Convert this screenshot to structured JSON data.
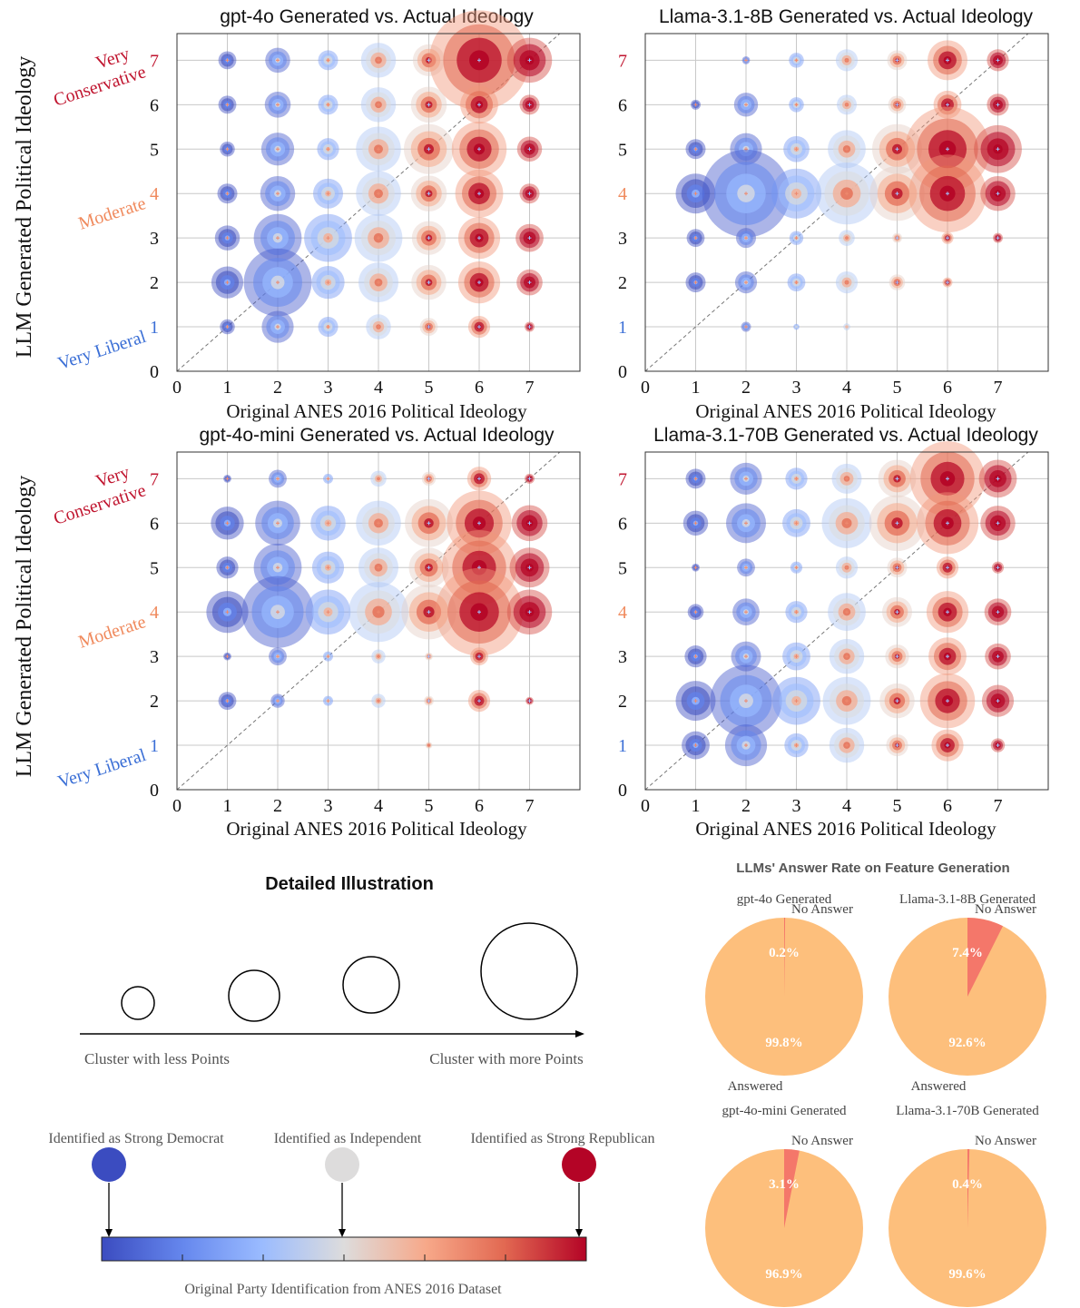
{
  "y_axis_label": "LLM Generated Political Ideology",
  "x_axis_label": "Original ANES 2016 Political Ideology",
  "anchor_labels": {
    "very_conservative_line1": "Very",
    "very_conservative_line2": "Conservative",
    "moderate": "Moderate",
    "very_liberal": "Very Liberal"
  },
  "colors": {
    "strong_democrat": "#3b4cc0",
    "independent": "#dddcdc",
    "strong_republican": "#b40426",
    "anchor_conservative": "#c0152f",
    "anchor_moderate": "#f08a5d",
    "anchor_liberal": "#3b6fd6",
    "pie_answered": "#fdbf7c",
    "pie_no_answer": "#f4776a"
  },
  "chart_data": [
    {
      "type": "scatter",
      "title": "gpt-4o Generated vs. Actual Ideology",
      "xlabel": "Original ANES 2016 Political Ideology",
      "ylabel": "LLM Generated Political Ideology",
      "xlim": [
        0,
        8
      ],
      "ylim": [
        0,
        7.6
      ],
      "xticks": [
        0,
        1,
        2,
        3,
        4,
        5,
        6,
        7
      ],
      "yticks": [
        0,
        1,
        2,
        3,
        4,
        5,
        6,
        7
      ],
      "grid": true,
      "diagonal": "dashed y = x",
      "bubbles": [
        {
          "x": 1,
          "y": 7,
          "size": 0.18
        },
        {
          "x": 2,
          "y": 7,
          "size": 0.25
        },
        {
          "x": 3,
          "y": 7,
          "size": 0.2
        },
        {
          "x": 4,
          "y": 7,
          "size": 0.35
        },
        {
          "x": 5,
          "y": 7,
          "size": 0.32
        },
        {
          "x": 6,
          "y": 7,
          "size": 1.0
        },
        {
          "x": 7,
          "y": 7,
          "size": 0.45
        },
        {
          "x": 1,
          "y": 6,
          "size": 0.18
        },
        {
          "x": 2,
          "y": 6,
          "size": 0.26
        },
        {
          "x": 3,
          "y": 6,
          "size": 0.2
        },
        {
          "x": 4,
          "y": 6,
          "size": 0.35
        },
        {
          "x": 5,
          "y": 6,
          "size": 0.36
        },
        {
          "x": 6,
          "y": 6,
          "size": 0.38
        },
        {
          "x": 7,
          "y": 6,
          "size": 0.2
        },
        {
          "x": 1,
          "y": 5,
          "size": 0.15
        },
        {
          "x": 2,
          "y": 5,
          "size": 0.33
        },
        {
          "x": 3,
          "y": 5,
          "size": 0.22
        },
        {
          "x": 4,
          "y": 5,
          "size": 0.45
        },
        {
          "x": 5,
          "y": 5,
          "size": 0.5
        },
        {
          "x": 6,
          "y": 5,
          "size": 0.55
        },
        {
          "x": 7,
          "y": 5,
          "size": 0.25
        },
        {
          "x": 1,
          "y": 4,
          "size": 0.2
        },
        {
          "x": 2,
          "y": 4,
          "size": 0.35
        },
        {
          "x": 3,
          "y": 4,
          "size": 0.3
        },
        {
          "x": 4,
          "y": 4,
          "size": 0.45
        },
        {
          "x": 5,
          "y": 4,
          "size": 0.36
        },
        {
          "x": 6,
          "y": 4,
          "size": 0.48
        },
        {
          "x": 7,
          "y": 4,
          "size": 0.2
        },
        {
          "x": 1,
          "y": 3,
          "size": 0.25
        },
        {
          "x": 2,
          "y": 3,
          "size": 0.48
        },
        {
          "x": 3,
          "y": 3,
          "size": 0.48
        },
        {
          "x": 4,
          "y": 3,
          "size": 0.48
        },
        {
          "x": 5,
          "y": 3,
          "size": 0.34
        },
        {
          "x": 6,
          "y": 3,
          "size": 0.42
        },
        {
          "x": 7,
          "y": 3,
          "size": 0.28
        },
        {
          "x": 1,
          "y": 2,
          "size": 0.32
        },
        {
          "x": 2,
          "y": 2,
          "size": 0.68
        },
        {
          "x": 3,
          "y": 2,
          "size": 0.33
        },
        {
          "x": 4,
          "y": 2,
          "size": 0.4
        },
        {
          "x": 5,
          "y": 2,
          "size": 0.35
        },
        {
          "x": 6,
          "y": 2,
          "size": 0.42
        },
        {
          "x": 7,
          "y": 2,
          "size": 0.26
        },
        {
          "x": 1,
          "y": 1,
          "size": 0.15
        },
        {
          "x": 2,
          "y": 1,
          "size": 0.32
        },
        {
          "x": 3,
          "y": 1,
          "size": 0.2
        },
        {
          "x": 4,
          "y": 1,
          "size": 0.25
        },
        {
          "x": 5,
          "y": 1,
          "size": 0.18
        },
        {
          "x": 6,
          "y": 1,
          "size": 0.22
        },
        {
          "x": 7,
          "y": 1,
          "size": 0.1
        }
      ]
    },
    {
      "type": "scatter",
      "title": "Llama-3.1-8B Generated vs. Actual Ideology",
      "xlabel": "Original ANES 2016 Political Ideology",
      "ylabel": "",
      "xlim": [
        0,
        8
      ],
      "ylim": [
        0,
        7.6
      ],
      "xticks": [
        0,
        1,
        2,
        3,
        4,
        5,
        6,
        7
      ],
      "yticks": [
        0,
        1,
        2,
        3,
        4,
        5,
        6,
        7
      ],
      "grid": true,
      "diagonal": "dashed y = x",
      "bubbles": [
        {
          "x": 1,
          "y": 7,
          "size": 0.0
        },
        {
          "x": 2,
          "y": 7,
          "size": 0.08
        },
        {
          "x": 3,
          "y": 7,
          "size": 0.15
        },
        {
          "x": 4,
          "y": 7,
          "size": 0.22
        },
        {
          "x": 5,
          "y": 7,
          "size": 0.2
        },
        {
          "x": 6,
          "y": 7,
          "size": 0.4
        },
        {
          "x": 7,
          "y": 7,
          "size": 0.22
        },
        {
          "x": 1,
          "y": 6,
          "size": 0.1
        },
        {
          "x": 2,
          "y": 6,
          "size": 0.24
        },
        {
          "x": 3,
          "y": 6,
          "size": 0.15
        },
        {
          "x": 4,
          "y": 6,
          "size": 0.2
        },
        {
          "x": 5,
          "y": 6,
          "size": 0.18
        },
        {
          "x": 6,
          "y": 6,
          "size": 0.28
        },
        {
          "x": 7,
          "y": 6,
          "size": 0.22
        },
        {
          "x": 1,
          "y": 5,
          "size": 0.2
        },
        {
          "x": 2,
          "y": 5,
          "size": 0.32
        },
        {
          "x": 3,
          "y": 5,
          "size": 0.26
        },
        {
          "x": 4,
          "y": 5,
          "size": 0.38
        },
        {
          "x": 5,
          "y": 5,
          "size": 0.5
        },
        {
          "x": 6,
          "y": 5,
          "size": 0.85
        },
        {
          "x": 7,
          "y": 5,
          "size": 0.48
        },
        {
          "x": 1,
          "y": 4,
          "size": 0.4
        },
        {
          "x": 2,
          "y": 4,
          "size": 0.88
        },
        {
          "x": 3,
          "y": 4,
          "size": 0.5
        },
        {
          "x": 4,
          "y": 4,
          "size": 0.62
        },
        {
          "x": 5,
          "y": 4,
          "size": 0.55
        },
        {
          "x": 6,
          "y": 4,
          "size": 0.78
        },
        {
          "x": 7,
          "y": 4,
          "size": 0.35
        },
        {
          "x": 1,
          "y": 3,
          "size": 0.18
        },
        {
          "x": 2,
          "y": 3,
          "size": 0.2
        },
        {
          "x": 3,
          "y": 3,
          "size": 0.14
        },
        {
          "x": 4,
          "y": 3,
          "size": 0.16
        },
        {
          "x": 5,
          "y": 3,
          "size": 0.1
        },
        {
          "x": 6,
          "y": 3,
          "size": 0.12
        },
        {
          "x": 7,
          "y": 3,
          "size": 0.1
        },
        {
          "x": 1,
          "y": 2,
          "size": 0.2
        },
        {
          "x": 2,
          "y": 2,
          "size": 0.22
        },
        {
          "x": 3,
          "y": 2,
          "size": 0.18
        },
        {
          "x": 4,
          "y": 2,
          "size": 0.22
        },
        {
          "x": 5,
          "y": 2,
          "size": 0.16
        },
        {
          "x": 6,
          "y": 2,
          "size": 0.1
        },
        {
          "x": 7,
          "y": 2,
          "size": 0.0
        },
        {
          "x": 1,
          "y": 1,
          "size": 0.0
        },
        {
          "x": 2,
          "y": 1,
          "size": 0.1
        },
        {
          "x": 3,
          "y": 1,
          "size": 0.06
        },
        {
          "x": 4,
          "y": 1,
          "size": 0.07
        },
        {
          "x": 5,
          "y": 1,
          "size": 0.0
        },
        {
          "x": 6,
          "y": 1,
          "size": 0.0
        },
        {
          "x": 7,
          "y": 1,
          "size": 0.0
        }
      ]
    },
    {
      "type": "scatter",
      "title": "gpt-4o-mini Generated vs. Actual Ideology",
      "xlabel": "Original ANES 2016 Political Ideology",
      "ylabel": "LLM Generated Political Ideology",
      "xlim": [
        0,
        8
      ],
      "ylim": [
        0,
        7.6
      ],
      "xticks": [
        0,
        1,
        2,
        3,
        4,
        5,
        6,
        7
      ],
      "yticks": [
        0,
        1,
        2,
        3,
        4,
        5,
        6,
        7
      ],
      "grid": true,
      "diagonal": "dashed y = x",
      "bubbles": [
        {
          "x": 1,
          "y": 7,
          "size": 0.08
        },
        {
          "x": 2,
          "y": 7,
          "size": 0.18
        },
        {
          "x": 3,
          "y": 7,
          "size": 0.1
        },
        {
          "x": 4,
          "y": 7,
          "size": 0.16
        },
        {
          "x": 5,
          "y": 7,
          "size": 0.14
        },
        {
          "x": 6,
          "y": 7,
          "size": 0.24
        },
        {
          "x": 7,
          "y": 7,
          "size": 0.1
        },
        {
          "x": 1,
          "y": 6,
          "size": 0.33
        },
        {
          "x": 2,
          "y": 6,
          "size": 0.45
        },
        {
          "x": 3,
          "y": 6,
          "size": 0.35
        },
        {
          "x": 4,
          "y": 6,
          "size": 0.45
        },
        {
          "x": 5,
          "y": 6,
          "size": 0.48
        },
        {
          "x": 6,
          "y": 6,
          "size": 0.65
        },
        {
          "x": 7,
          "y": 6,
          "size": 0.36
        },
        {
          "x": 1,
          "y": 5,
          "size": 0.22
        },
        {
          "x": 2,
          "y": 5,
          "size": 0.48
        },
        {
          "x": 3,
          "y": 5,
          "size": 0.32
        },
        {
          "x": 4,
          "y": 5,
          "size": 0.4
        },
        {
          "x": 5,
          "y": 5,
          "size": 0.4
        },
        {
          "x": 6,
          "y": 5,
          "size": 0.75
        },
        {
          "x": 7,
          "y": 5,
          "size": 0.4
        },
        {
          "x": 1,
          "y": 4,
          "size": 0.42
        },
        {
          "x": 2,
          "y": 4,
          "size": 0.72
        },
        {
          "x": 3,
          "y": 4,
          "size": 0.45
        },
        {
          "x": 4,
          "y": 4,
          "size": 0.6
        },
        {
          "x": 5,
          "y": 4,
          "size": 0.55
        },
        {
          "x": 6,
          "y": 4,
          "size": 0.88
        },
        {
          "x": 7,
          "y": 4,
          "size": 0.45
        },
        {
          "x": 1,
          "y": 3,
          "size": 0.08
        },
        {
          "x": 2,
          "y": 3,
          "size": 0.18
        },
        {
          "x": 3,
          "y": 3,
          "size": 0.1
        },
        {
          "x": 4,
          "y": 3,
          "size": 0.14
        },
        {
          "x": 5,
          "y": 3,
          "size": 0.08
        },
        {
          "x": 6,
          "y": 3,
          "size": 0.18
        },
        {
          "x": 7,
          "y": 3,
          "size": 0.0
        },
        {
          "x": 1,
          "y": 2,
          "size": 0.18
        },
        {
          "x": 2,
          "y": 2,
          "size": 0.14
        },
        {
          "x": 3,
          "y": 2,
          "size": 0.1
        },
        {
          "x": 4,
          "y": 2,
          "size": 0.14
        },
        {
          "x": 5,
          "y": 2,
          "size": 0.1
        },
        {
          "x": 6,
          "y": 2,
          "size": 0.22
        },
        {
          "x": 7,
          "y": 2,
          "size": 0.08
        },
        {
          "x": 1,
          "y": 1,
          "size": 0.0
        },
        {
          "x": 2,
          "y": 1,
          "size": 0.0
        },
        {
          "x": 3,
          "y": 1,
          "size": 0.0
        },
        {
          "x": 4,
          "y": 1,
          "size": 0.0
        },
        {
          "x": 5,
          "y": 1,
          "size": 0.07
        },
        {
          "x": 6,
          "y": 1,
          "size": 0.0
        },
        {
          "x": 7,
          "y": 1,
          "size": 0.0
        }
      ]
    },
    {
      "type": "scatter",
      "title": "Llama-3.1-70B Generated vs. Actual Ideology",
      "xlabel": "Original ANES 2016 Political Ideology",
      "ylabel": "",
      "xlim": [
        0,
        8
      ],
      "ylim": [
        0,
        7.6
      ],
      "xticks": [
        0,
        1,
        2,
        3,
        4,
        5,
        6,
        7
      ],
      "yticks": [
        0,
        1,
        2,
        3,
        4,
        5,
        6,
        7
      ],
      "grid": true,
      "diagonal": "dashed y = x",
      "bubbles": [
        {
          "x": 1,
          "y": 7,
          "size": 0.2
        },
        {
          "x": 2,
          "y": 7,
          "size": 0.32
        },
        {
          "x": 3,
          "y": 7,
          "size": 0.22
        },
        {
          "x": 4,
          "y": 7,
          "size": 0.3
        },
        {
          "x": 5,
          "y": 7,
          "size": 0.38
        },
        {
          "x": 6,
          "y": 7,
          "size": 0.75
        },
        {
          "x": 7,
          "y": 7,
          "size": 0.38
        },
        {
          "x": 1,
          "y": 6,
          "size": 0.25
        },
        {
          "x": 2,
          "y": 6,
          "size": 0.4
        },
        {
          "x": 3,
          "y": 6,
          "size": 0.28
        },
        {
          "x": 4,
          "y": 6,
          "size": 0.5
        },
        {
          "x": 5,
          "y": 6,
          "size": 0.56
        },
        {
          "x": 6,
          "y": 6,
          "size": 0.62
        },
        {
          "x": 7,
          "y": 6,
          "size": 0.35
        },
        {
          "x": 1,
          "y": 5,
          "size": 0.08
        },
        {
          "x": 2,
          "y": 5,
          "size": 0.18
        },
        {
          "x": 3,
          "y": 5,
          "size": 0.12
        },
        {
          "x": 4,
          "y": 5,
          "size": 0.22
        },
        {
          "x": 5,
          "y": 5,
          "size": 0.2
        },
        {
          "x": 6,
          "y": 5,
          "size": 0.22
        },
        {
          "x": 7,
          "y": 5,
          "size": 0.12
        },
        {
          "x": 1,
          "y": 4,
          "size": 0.16
        },
        {
          "x": 2,
          "y": 4,
          "size": 0.27
        },
        {
          "x": 3,
          "y": 4,
          "size": 0.22
        },
        {
          "x": 4,
          "y": 4,
          "size": 0.38
        },
        {
          "x": 5,
          "y": 4,
          "size": 0.3
        },
        {
          "x": 6,
          "y": 4,
          "size": 0.42
        },
        {
          "x": 7,
          "y": 4,
          "size": 0.27
        },
        {
          "x": 1,
          "y": 3,
          "size": 0.22
        },
        {
          "x": 2,
          "y": 3,
          "size": 0.3
        },
        {
          "x": 3,
          "y": 3,
          "size": 0.28
        },
        {
          "x": 4,
          "y": 3,
          "size": 0.35
        },
        {
          "x": 5,
          "y": 3,
          "size": 0.24
        },
        {
          "x": 6,
          "y": 3,
          "size": 0.38
        },
        {
          "x": 7,
          "y": 3,
          "size": 0.26
        },
        {
          "x": 1,
          "y": 2,
          "size": 0.4
        },
        {
          "x": 2,
          "y": 2,
          "size": 0.72
        },
        {
          "x": 3,
          "y": 2,
          "size": 0.48
        },
        {
          "x": 4,
          "y": 2,
          "size": 0.48
        },
        {
          "x": 5,
          "y": 2,
          "size": 0.35
        },
        {
          "x": 6,
          "y": 2,
          "size": 0.55
        },
        {
          "x": 7,
          "y": 2,
          "size": 0.32
        },
        {
          "x": 1,
          "y": 1,
          "size": 0.28
        },
        {
          "x": 2,
          "y": 1,
          "size": 0.42
        },
        {
          "x": 3,
          "y": 1,
          "size": 0.24
        },
        {
          "x": 4,
          "y": 1,
          "size": 0.35
        },
        {
          "x": 5,
          "y": 1,
          "size": 0.22
        },
        {
          "x": 6,
          "y": 1,
          "size": 0.32
        },
        {
          "x": 7,
          "y": 1,
          "size": 0.14
        }
      ]
    },
    {
      "type": "pie",
      "title": "LLMs' Answer Rate on Feature Generation",
      "slice_labels": [
        "Answered",
        "No Answer"
      ],
      "pies": [
        {
          "name": "gpt-4o Generated",
          "values": [
            99.8,
            0.2
          ],
          "labels": [
            "99.8%",
            "0.2%"
          ]
        },
        {
          "name": "Llama-3.1-8B Generated",
          "values": [
            92.6,
            7.4
          ],
          "labels": [
            "92.6%",
            "7.4%"
          ]
        },
        {
          "name": "gpt-4o-mini Generated",
          "values": [
            96.9,
            3.1
          ],
          "labels": [
            "96.9%",
            "3.1%"
          ]
        },
        {
          "name": "Llama-3.1-70B Generated",
          "values": [
            99.6,
            0.4
          ],
          "labels": [
            "99.6%",
            "0.4%"
          ]
        }
      ]
    }
  ],
  "illustration": {
    "title": "Detailed Illustration",
    "left_label": "Cluster with less Points",
    "right_label": "Cluster with more Points",
    "party_labels": [
      "Identified as Strong Democrat",
      "Identified as Independent",
      "Identified as Strong Republican"
    ],
    "colorbar_label": "Original Party Identification from ANES 2016 Dataset"
  }
}
